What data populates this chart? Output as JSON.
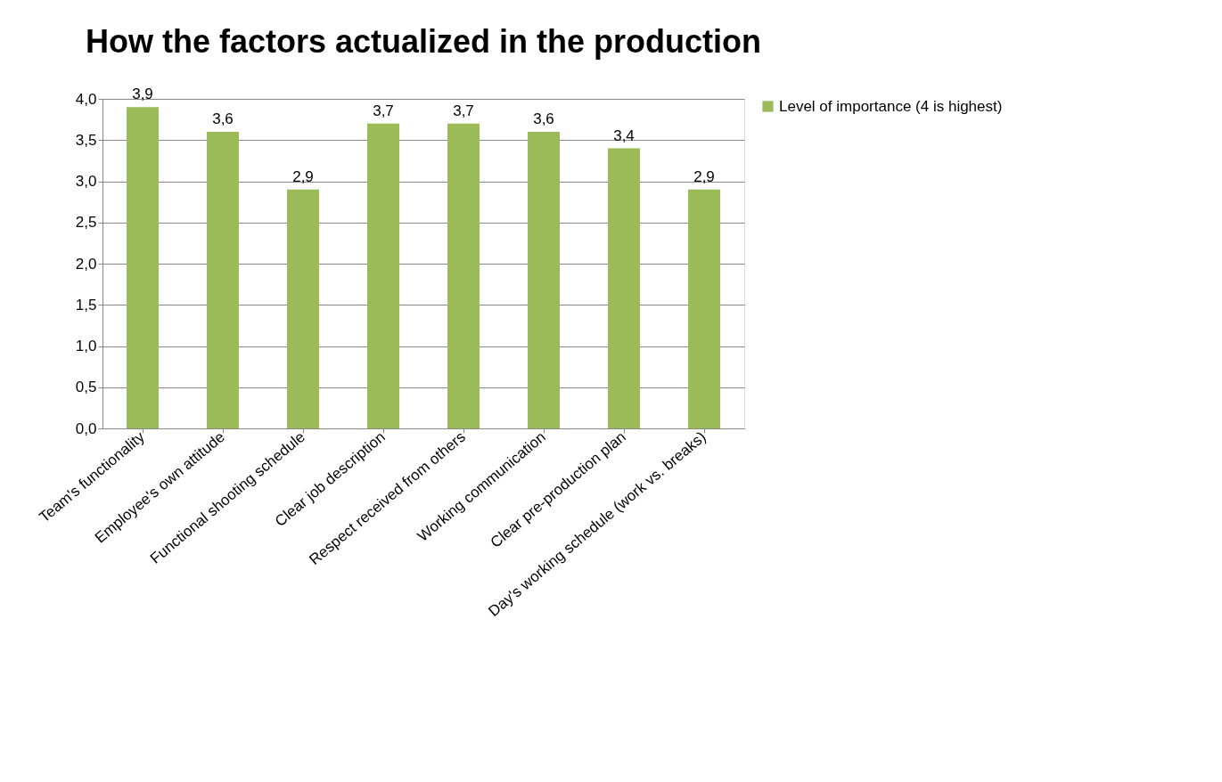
{
  "chart_data": {
    "type": "bar",
    "title": "How the factors actualized in the production",
    "categories": [
      "Team's functionality",
      "Employee's own attitude",
      "Functional shooting schedule",
      "Clear job description",
      "Respect received from others",
      "Working communication",
      "Clear pre-production plan",
      "Day's working schedule (work vs. breaks)"
    ],
    "series": [
      {
        "name": "Level of importance (4 is highest)",
        "color": "#9bbb59",
        "values": [
          3.9,
          3.6,
          2.9,
          3.7,
          3.7,
          3.6,
          3.4,
          2.9
        ],
        "value_labels": [
          "3,9",
          "3,6",
          "2,9",
          "3,7",
          "3,7",
          "3,6",
          "3,4",
          "2,9"
        ]
      }
    ],
    "ylim": [
      0,
      4
    ],
    "yticks": [
      {
        "value": 0,
        "label": "0,0"
      },
      {
        "value": 0.5,
        "label": "0,5"
      },
      {
        "value": 1,
        "label": "1,0"
      },
      {
        "value": 1.5,
        "label": "1,5"
      },
      {
        "value": 2,
        "label": "2,0"
      },
      {
        "value": 2.5,
        "label": "2,5"
      },
      {
        "value": 3,
        "label": "3,0"
      },
      {
        "value": 3.5,
        "label": "3,5"
      },
      {
        "value": 4,
        "label": "4,0"
      }
    ],
    "grid": "y",
    "legend": "right"
  }
}
